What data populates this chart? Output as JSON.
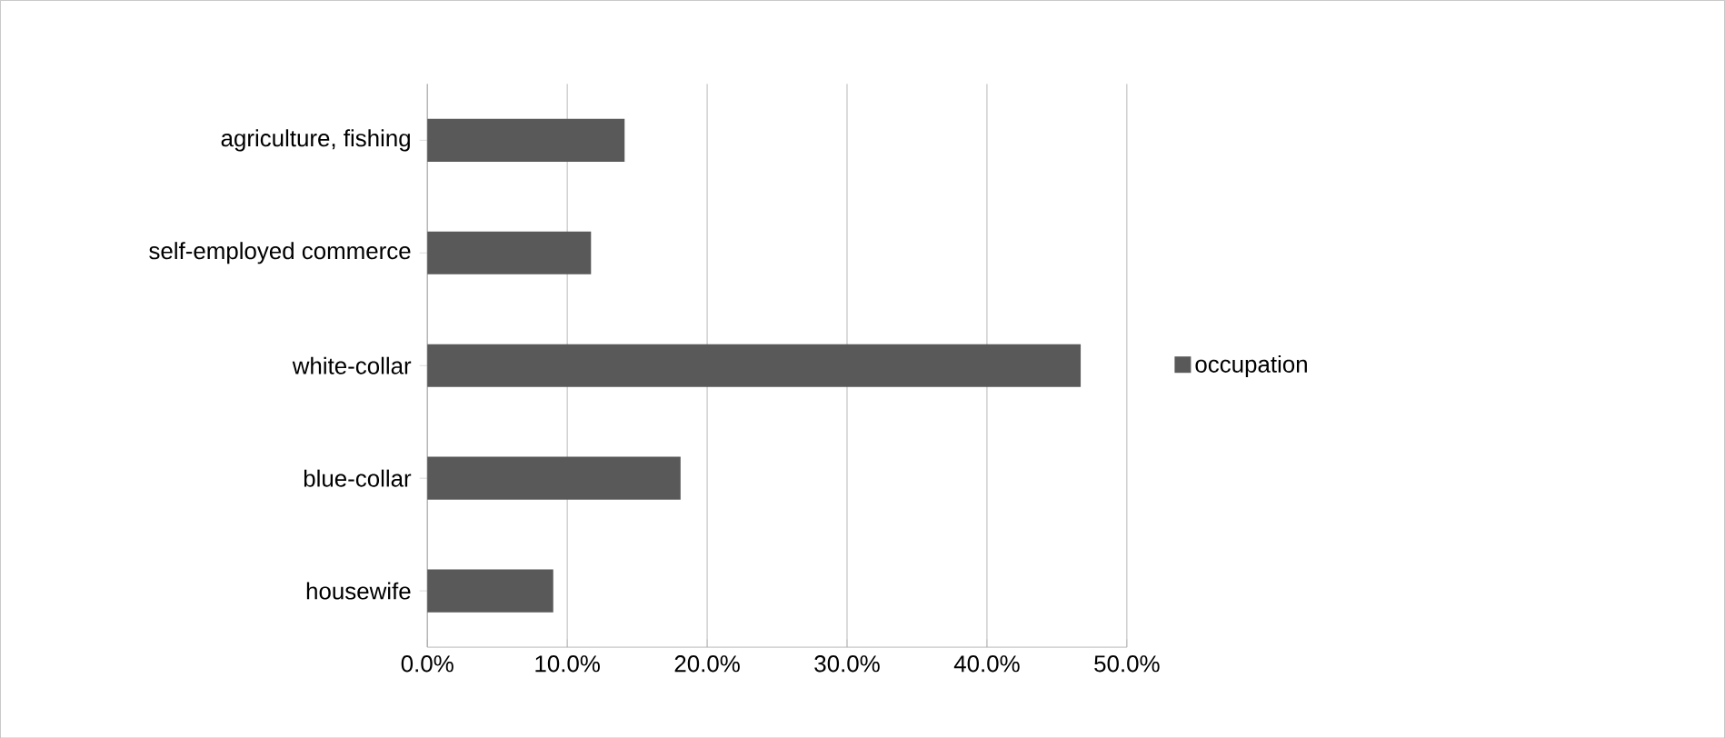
{
  "chart_data": {
    "type": "bar",
    "orientation": "horizontal",
    "categories": [
      "agriculture, fishing",
      "self-employed commerce",
      "white-collar",
      "blue-collar",
      "housewife"
    ],
    "series": [
      {
        "name": "occupation",
        "color": "#595959",
        "values": [
          14.1,
          11.7,
          46.7,
          18.1,
          9.0
        ]
      }
    ],
    "xlim": [
      0,
      50
    ],
    "xticks": [
      {
        "value": 0,
        "label": "0.0%"
      },
      {
        "value": 10,
        "label": "10.0%"
      },
      {
        "value": 20,
        "label": "20.0%"
      },
      {
        "value": 30,
        "label": "30.0%"
      },
      {
        "value": 40,
        "label": "40.0%"
      },
      {
        "value": 50,
        "label": "50.0%"
      }
    ],
    "grid": "x",
    "legend": "right"
  }
}
